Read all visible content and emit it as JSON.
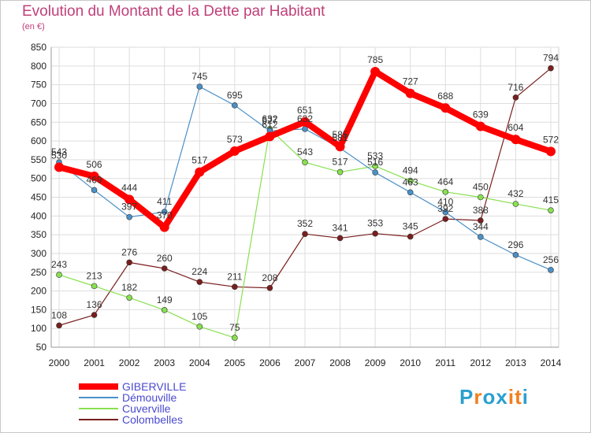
{
  "header": {
    "title": "Evolution du Montant de la Dette par Habitant",
    "unit": "(en €)"
  },
  "chart_data": {
    "type": "line",
    "title": "Evolution du Montant de la Dette par Habitant",
    "ylabel": "(en €)",
    "xlabel": "",
    "x": [
      "2000",
      "2001",
      "2002",
      "2003",
      "2004",
      "2005",
      "2006",
      "2007",
      "2008",
      "2009",
      "2010",
      "2011",
      "2012",
      "2013",
      "2014"
    ],
    "ylim": [
      50,
      850
    ],
    "yticks": [
      50,
      100,
      150,
      200,
      250,
      300,
      350,
      400,
      450,
      500,
      550,
      600,
      650,
      700,
      750,
      800,
      850
    ],
    "grid": true,
    "legend_position": "bottom-left",
    "series": [
      {
        "name": "GIBERVILLE",
        "color": "#ff0000",
        "values": [
          530,
          506,
          444,
          370,
          517,
          573,
          612,
          651,
          585,
          785,
          727,
          688,
          639,
          604,
          572
        ]
      },
      {
        "name": "Démouville",
        "color": "#4a90c8",
        "values": [
          543,
          469,
          397,
          411,
          745,
          695,
          627,
          632,
          581,
          516,
          463,
          410,
          344,
          296,
          256
        ]
      },
      {
        "name": "Cuverville",
        "color": "#88e050",
        "values": [
          243,
          213,
          182,
          149,
          105,
          75,
          632,
          543,
          517,
          533,
          494,
          464,
          450,
          432,
          415
        ]
      },
      {
        "name": "Colombelles",
        "color": "#7a1e1e",
        "values": [
          108,
          136,
          276,
          260,
          224,
          211,
          208,
          352,
          341,
          353,
          345,
          392,
          388,
          716,
          794
        ]
      }
    ]
  },
  "logo": {
    "letters": [
      "P",
      "r",
      "o",
      "x",
      "i",
      "t",
      "i"
    ],
    "colors": [
      "#2aa0d0",
      "#f08020",
      "#2aa0d0",
      "#2aa0d0",
      "#f08020",
      "#f08020",
      "#2aa0d0"
    ]
  }
}
